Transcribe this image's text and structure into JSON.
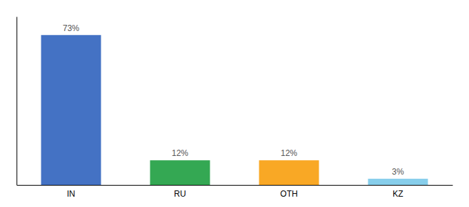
{
  "chart_data": {
    "type": "bar",
    "categories": [
      "IN",
      "RU",
      "OTH",
      "KZ"
    ],
    "values": [
      73,
      12,
      12,
      3
    ],
    "value_labels": [
      "73%",
      "12%",
      "12%",
      "3%"
    ],
    "colors": [
      "#4472c4",
      "#34a853",
      "#f9a825",
      "#87ceeb"
    ],
    "ylim": [
      0,
      82
    ],
    "data_labels": true,
    "tick_labels": "x",
    "grid": false
  }
}
